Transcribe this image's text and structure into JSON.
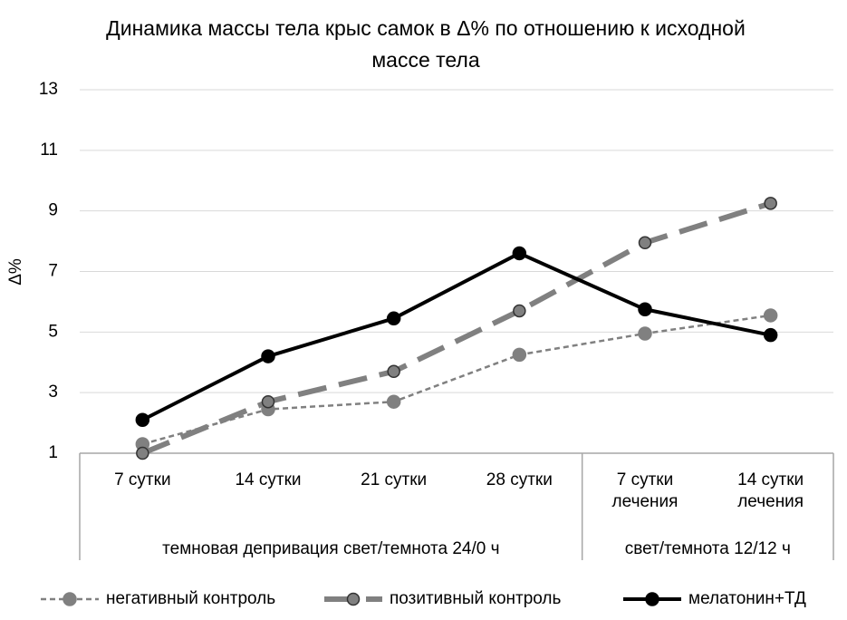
{
  "chart_data": {
    "type": "line",
    "title": "Динамика массы тела крыс самок в Δ% по отношению к исходной массе тела",
    "y_label": "Δ%",
    "categories": [
      "7 сутки",
      "14 сутки",
      "21 сутки",
      "28 сутки",
      "7 сутки лечения",
      "14 сутки лечения"
    ],
    "group_labels": [
      "темновая депривация свет/темнота 24/0 ч",
      "свет/темнота 12/12 ч"
    ],
    "series": [
      {
        "name": "негативный контроль",
        "color": "#808080",
        "line_style": "dashed",
        "values": [
          1.3,
          2.45,
          2.7,
          4.25,
          4.95,
          5.55
        ]
      },
      {
        "name": "позитивный контроль",
        "color": "#808080",
        "line_style": "long-dash",
        "values": [
          1.0,
          2.7,
          3.7,
          5.7,
          7.95,
          9.25
        ]
      },
      {
        "name": "мелатонин+ТД",
        "color": "#000000",
        "line_style": "solid",
        "values": [
          2.1,
          4.2,
          5.45,
          7.6,
          5.75,
          4.9
        ]
      }
    ],
    "ylim": [
      1,
      13
    ],
    "yticks": [
      1,
      3,
      5,
      7,
      9,
      11,
      13
    ],
    "grid": true
  }
}
